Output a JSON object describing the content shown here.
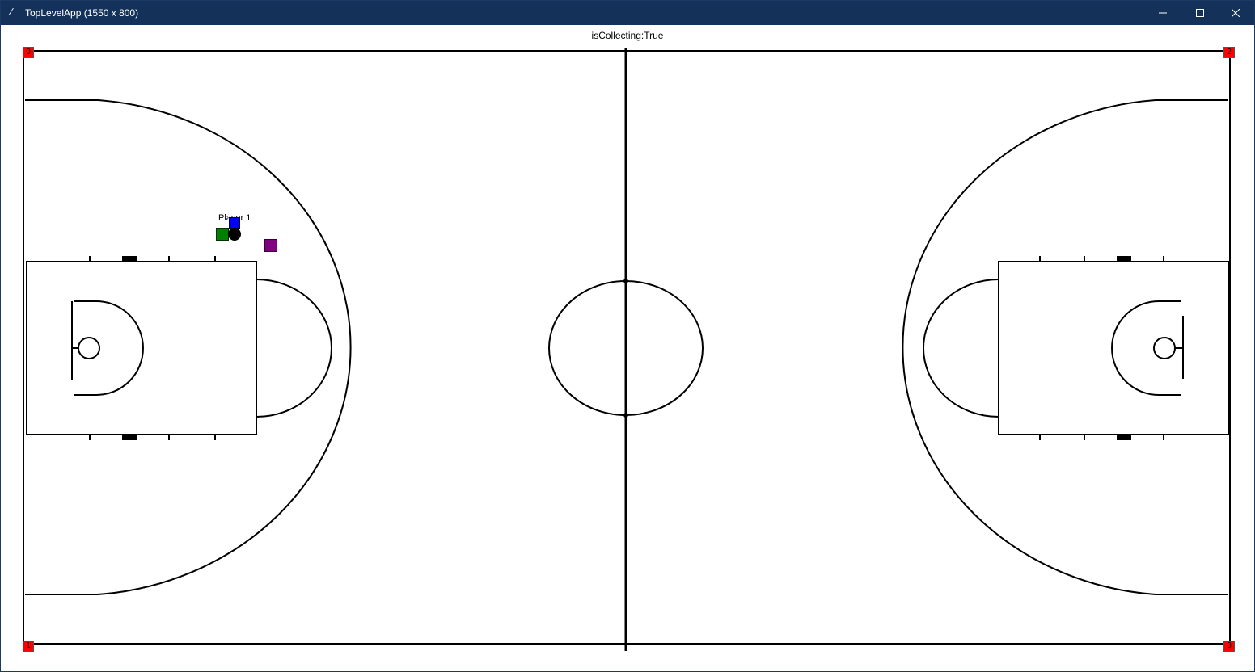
{
  "window": {
    "title": "TopLevelApp (1550 x 800)",
    "app_icon": "feather-icon",
    "controls": [
      "minimize-icon",
      "maximize-icon",
      "close-icon"
    ]
  },
  "status": {
    "text": "isCollecting:True"
  },
  "court": {
    "corner_markers": [
      {
        "label": "0",
        "color": "#ff0000"
      },
      {
        "label": "1",
        "color": "#ff0000"
      },
      {
        "label": "2",
        "color": "#ff0000"
      },
      {
        "label": "3",
        "color": "#ff0000"
      }
    ],
    "player_label": "Player 1",
    "markers": [
      {
        "name": "player-1-marker",
        "color": "#0000ff"
      },
      {
        "name": "green-marker",
        "color": "#008000"
      },
      {
        "name": "ball-marker",
        "color": "#000000"
      },
      {
        "name": "purple-marker",
        "color": "#800080"
      }
    ]
  }
}
